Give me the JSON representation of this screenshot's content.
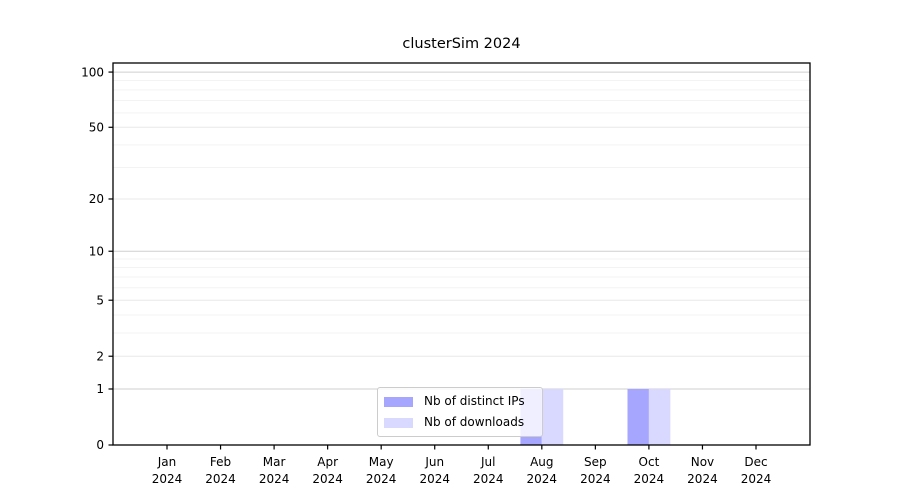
{
  "figure": {
    "background": "#ffffff"
  },
  "chart_data": {
    "type": "bar",
    "title": "clusterSim 2024",
    "categories": [
      "Jan 2024",
      "Feb 2024",
      "Mar 2024",
      "Apr 2024",
      "May 2024",
      "Jun 2024",
      "Jul 2024",
      "Aug 2024",
      "Sep 2024",
      "Oct 2024",
      "Nov 2024",
      "Dec 2024"
    ],
    "series": [
      {
        "name": "Nb of distinct IPs",
        "color": "#a6a6ff",
        "values": [
          0,
          0,
          0,
          0,
          0,
          0,
          0,
          1,
          0,
          1,
          0,
          0
        ]
      },
      {
        "name": "Nb of downloads",
        "color": "#d9d9ff",
        "values": [
          0,
          0,
          0,
          0,
          0,
          0,
          0,
          1,
          0,
          1,
          0,
          0
        ]
      }
    ],
    "yscale": "log1p",
    "ylim": [
      0,
      112
    ],
    "yticks": [
      100,
      50,
      20,
      10,
      5,
      2,
      1,
      0
    ],
    "major_gridlines": [
      1,
      10,
      100
    ],
    "labeled_minor_gridlines": [
      2,
      5,
      20,
      50
    ],
    "minor_gridlines": [
      3,
      4,
      6,
      7,
      8,
      9,
      30,
      40,
      60,
      70,
      80,
      90
    ],
    "grid": true,
    "legend_position": "lower center",
    "colors": {
      "spine": "#000000",
      "major_grid": "#cfcfcf",
      "labeled_grid": "#e8e8e8",
      "minor_grid": "#f3f3f3",
      "text": "#000000"
    }
  }
}
